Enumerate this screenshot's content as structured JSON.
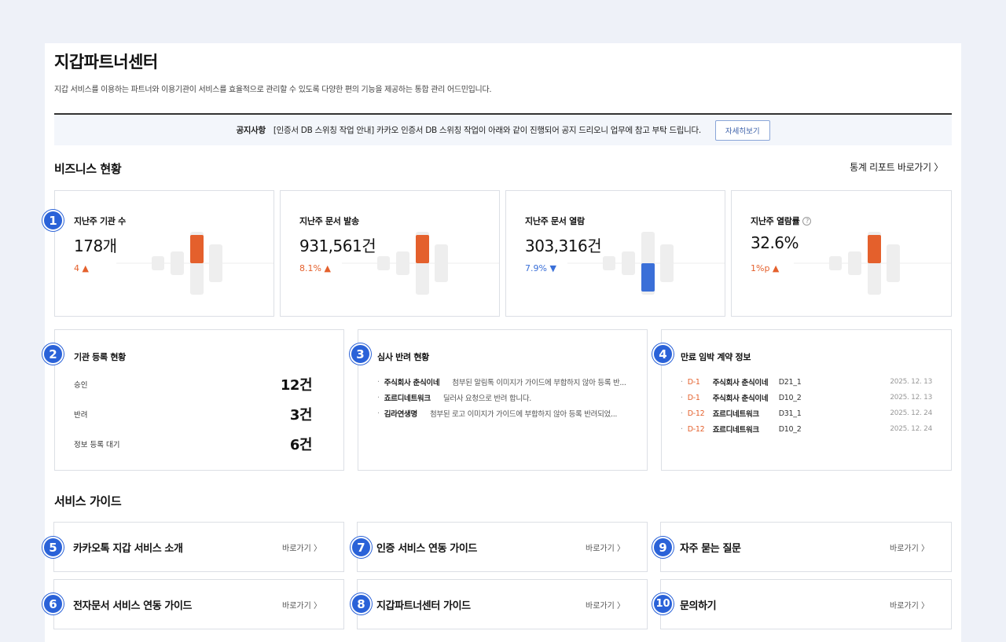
{
  "header": {
    "title": "지갑파트너센터",
    "description": "지갑 서비스를 이용하는 파트너와 이용기관이 서비스를 효율적으로 관리할 수 있도록 다양한 편의 기능을 제공하는 통합 관리 어드민입니다."
  },
  "notice": {
    "label": "공지사항",
    "text": "[인증서 DB 스위칭 작업 안내] 카카오 인증서 DB 스위칭 작업이 아래와 같이 진행되어 공지 드리오니 업무에 참고 부탁 드립니다.",
    "button": "자세히보기"
  },
  "business": {
    "title": "비즈니스 현황",
    "report_link": "통계 리포트 바로가기 〉",
    "stats": [
      {
        "badge": "1",
        "label": "지난주 기관 수",
        "value": "178개",
        "change": "4 ▲",
        "direction": "up",
        "bar_color": "#e4602c",
        "bar_level": 0.9
      },
      {
        "badge": "",
        "label": "지난주 문서 발송",
        "value": "931,561건",
        "change": "8.1% ▲",
        "direction": "up",
        "bar_color": "#e4602c",
        "bar_level": 0.9
      },
      {
        "badge": "",
        "label": "지난주 문서 열람",
        "value": "303,316건",
        "change": "7.9% ▼",
        "direction": "down",
        "bar_color": "#3a6fd8",
        "bar_level": 0.9
      },
      {
        "badge": "",
        "label": "지난주 열람률",
        "value": "32.6%",
        "change": "1%p ▲",
        "direction": "up",
        "bar_color": "#e4602c",
        "bar_level": 0.9
      }
    ],
    "help_icon": "?"
  },
  "registration": {
    "badge": "2",
    "title": "기관 등록 현황",
    "rows": [
      {
        "label": "승인",
        "value": "12건"
      },
      {
        "label": "반려",
        "value": "3건"
      },
      {
        "label": "정보 등록 대기",
        "value": "6건"
      }
    ]
  },
  "rejection": {
    "badge": "3",
    "title": "심사 반려 현황",
    "items": [
      {
        "name": "주식회사 춘식이네",
        "reason": "첨부된 알림톡 이미지가 가이드에 부합하지 않아 등록 반..."
      },
      {
        "name": "죠르디네트워크",
        "reason": "딜러사 요청으로 반려 합니다."
      },
      {
        "name": "김라연생명",
        "reason": "첨부된 로고 이미지가 가이드에 부합하지 않아 등록 반려되었..."
      }
    ]
  },
  "contracts": {
    "badge": "4",
    "title": "만료 임박 계약 정보",
    "items": [
      {
        "dday": "D-1",
        "company": "주식회사 춘식이네",
        "code": "D21_1",
        "date": "2025. 12. 13"
      },
      {
        "dday": "D-1",
        "company": "주식회사 춘식이네",
        "code": "D10_2",
        "date": "2025. 12. 13"
      },
      {
        "dday": "D-12",
        "company": "죠르디네트워크",
        "code": "D31_1",
        "date": "2025. 12. 24"
      },
      {
        "dday": "D-12",
        "company": "죠르디네트워크",
        "code": "D10_2",
        "date": "2025. 12. 24"
      }
    ]
  },
  "guides": {
    "title": "서비스 가이드",
    "link_label": "바로가기 〉",
    "items": [
      {
        "badge": "5",
        "title": "카카오톡 지갑 서비스 소개"
      },
      {
        "badge": "6",
        "title": "전자문서 서비스 연동 가이드"
      },
      {
        "badge": "7",
        "title": "인증 서비스 연동 가이드"
      },
      {
        "badge": "8",
        "title": "지갑파트너센터 가이드"
      },
      {
        "badge": "9",
        "title": "자주 묻는 질문"
      },
      {
        "badge": "10",
        "title": "문의하기"
      }
    ]
  }
}
